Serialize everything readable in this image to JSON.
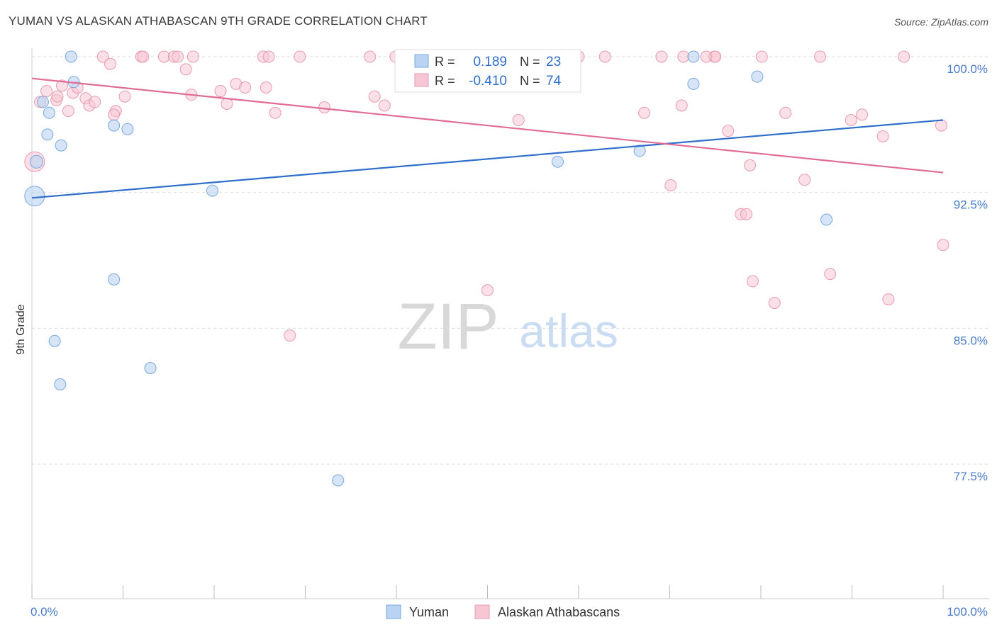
{
  "title": "YUMAN VS ALASKAN ATHABASCAN 9TH GRADE CORRELATION CHART",
  "source": "Source: ZipAtlas.com",
  "watermark": {
    "zip": "ZIP",
    "atlas": "atlas"
  },
  "colors": {
    "blue_fill": "#b9d3f2",
    "blue_stroke": "#7aa8df",
    "blue_line": "#2f6fcc",
    "pink_fill": "#f7c6d4",
    "pink_stroke": "#e89ab2",
    "pink_line": "#e06b95",
    "grid": "#dddddd",
    "tick_label": "#4a7cc9"
  },
  "chart_data": {
    "type": "scatter",
    "title": "YUMAN VS ALASKAN ATHABASCAN 9TH GRADE CORRELATION CHART",
    "xlabel": "",
    "ylabel": "9th Grade",
    "xlim": [
      0,
      100
    ],
    "ylim": [
      70.5,
      100.75
    ],
    "x_tick_labels": [
      "0.0%",
      "100.0%"
    ],
    "y_ticks": [
      77.5,
      85.0,
      92.5,
      100.0
    ],
    "y_tick_labels": [
      "77.5%",
      "85.0%",
      "92.5%",
      "100.0%"
    ],
    "grid": true,
    "legend_position": "bottom",
    "stats_legend": [
      {
        "r_label": "R =",
        "r_value": "0.189",
        "n_label": "N =",
        "n_value": "23"
      },
      {
        "r_label": "R =",
        "r_value": "-0.410",
        "n_label": "N =",
        "n_value": "74"
      }
    ],
    "series": [
      {
        "name": "Yuman",
        "color": "#b9d3f2",
        "trend": {
          "x": [
            0,
            100
          ],
          "y": [
            92.2,
            96.5
          ]
        },
        "points": [
          [
            0.3,
            92.3,
            14
          ],
          [
            0.5,
            94.2,
            9
          ],
          [
            1.2,
            97.5,
            8
          ],
          [
            1.9,
            96.9,
            8
          ],
          [
            1.7,
            95.7,
            8
          ],
          [
            3.2,
            95.1,
            8
          ],
          [
            4.6,
            98.6,
            8
          ],
          [
            4.3,
            100.0,
            8
          ],
          [
            9.0,
            96.2,
            8
          ],
          [
            10.5,
            96.0,
            8
          ],
          [
            19.8,
            92.6,
            8
          ],
          [
            9.0,
            87.7,
            8
          ],
          [
            2.5,
            84.3,
            8
          ],
          [
            3.1,
            81.9,
            8
          ],
          [
            13.0,
            82.8,
            8
          ],
          [
            33.6,
            76.6,
            8
          ],
          [
            51.7,
            100.0,
            8
          ],
          [
            57.7,
            94.2,
            8
          ],
          [
            66.7,
            94.8,
            8
          ],
          [
            72.6,
            100.0,
            8
          ],
          [
            72.6,
            98.5,
            8
          ],
          [
            79.6,
            98.9,
            8
          ],
          [
            87.2,
            91.0,
            8
          ]
        ]
      },
      {
        "name": "Alaskan Athabascans",
        "color": "#f7c6d4",
        "trend": {
          "x": [
            0,
            100
          ],
          "y": [
            98.8,
            93.6
          ]
        },
        "points": [
          [
            0.3,
            94.2,
            14
          ],
          [
            0.9,
            97.5,
            8
          ],
          [
            1.6,
            98.1,
            8
          ],
          [
            2.7,
            97.6,
            8
          ],
          [
            2.8,
            97.8,
            8
          ],
          [
            3.3,
            98.4,
            8
          ],
          [
            4.0,
            97.0,
            8
          ],
          [
            4.5,
            98.0,
            8
          ],
          [
            5.0,
            98.3,
            8
          ],
          [
            5.9,
            97.7,
            8
          ],
          [
            6.3,
            97.3,
            8
          ],
          [
            6.9,
            97.5,
            8
          ],
          [
            7.8,
            100.0,
            8
          ],
          [
            8.6,
            99.6,
            8
          ],
          [
            9.2,
            97.0,
            8
          ],
          [
            9.0,
            96.8,
            8
          ],
          [
            10.2,
            97.8,
            8
          ],
          [
            12.0,
            100.0,
            8
          ],
          [
            12.2,
            100.0,
            8
          ],
          [
            14.5,
            100.0,
            8
          ],
          [
            15.6,
            100.0,
            8
          ],
          [
            16.0,
            100.0,
            8
          ],
          [
            16.9,
            99.3,
            8
          ],
          [
            17.5,
            97.9,
            8
          ],
          [
            17.7,
            100.0,
            8
          ],
          [
            20.7,
            98.1,
            8
          ],
          [
            21.4,
            97.4,
            8
          ],
          [
            22.4,
            98.5,
            8
          ],
          [
            23.4,
            98.3,
            8
          ],
          [
            25.4,
            100.0,
            8
          ],
          [
            25.7,
            98.3,
            8
          ],
          [
            26.0,
            100.0,
            8
          ],
          [
            26.7,
            96.9,
            8
          ],
          [
            28.3,
            84.6,
            8
          ],
          [
            29.4,
            100.0,
            8
          ],
          [
            32.1,
            97.2,
            8
          ],
          [
            37.1,
            100.0,
            8
          ],
          [
            37.6,
            97.8,
            8
          ],
          [
            38.7,
            97.3,
            8
          ],
          [
            39.9,
            100.0,
            8
          ],
          [
            41.8,
            100.0,
            8
          ],
          [
            50.0,
            87.1,
            8
          ],
          [
            53.4,
            96.5,
            8
          ],
          [
            57.7,
            100.0,
            8
          ],
          [
            58.0,
            100.0,
            8
          ],
          [
            58.8,
            100.0,
            8
          ],
          [
            60.0,
            100.0,
            8
          ],
          [
            62.9,
            100.0,
            8
          ],
          [
            67.2,
            96.9,
            8
          ],
          [
            69.1,
            100.0,
            8
          ],
          [
            71.5,
            100.0,
            8
          ],
          [
            74.9,
            100.0,
            8
          ],
          [
            75.0,
            100.0,
            8
          ],
          [
            74.0,
            100.0,
            8
          ],
          [
            71.3,
            97.3,
            8
          ],
          [
            76.4,
            95.9,
            8
          ],
          [
            77.8,
            91.3,
            8
          ],
          [
            78.4,
            91.3,
            8
          ],
          [
            79.1,
            87.6,
            8
          ],
          [
            78.8,
            94.0,
            8
          ],
          [
            80.1,
            100.0,
            8
          ],
          [
            81.5,
            86.4,
            8
          ],
          [
            82.7,
            96.9,
            8
          ],
          [
            86.5,
            100.0,
            8
          ],
          [
            87.6,
            88.0,
            8
          ],
          [
            89.9,
            96.5,
            8
          ],
          [
            91.1,
            96.8,
            8
          ],
          [
            93.4,
            95.6,
            8
          ],
          [
            94.0,
            86.6,
            8
          ],
          [
            95.7,
            100.0,
            8
          ],
          [
            99.8,
            96.2,
            8
          ],
          [
            100.0,
            89.6,
            8
          ],
          [
            84.8,
            93.2,
            8
          ],
          [
            70.1,
            92.9,
            8
          ]
        ]
      }
    ]
  }
}
